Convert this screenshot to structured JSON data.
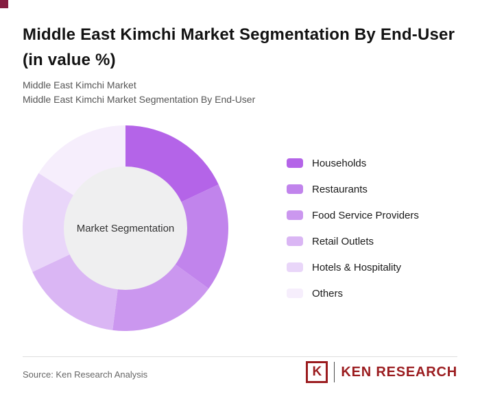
{
  "decoration": {
    "corner_square_color": "#851d41"
  },
  "header": {
    "title": "Middle East Kimchi Market Segmentation By End-User (in value %)",
    "subtitle1": "Middle East Kimchi Market",
    "subtitle2": "Middle East Kimchi Market Segmentation By End-User"
  },
  "chart_data": {
    "type": "pie",
    "variant": "donut",
    "title": "Middle East Kimchi Market Segmentation By End-User (in value %)",
    "center_label": "Market Segmentation",
    "categories": [
      "Households",
      "Restaurants",
      "Food Service Providers",
      "Retail Outlets",
      "Hotels & Hospitality",
      "Others"
    ],
    "values": [
      18,
      17,
      17,
      16,
      16,
      16
    ],
    "colors": [
      "#b464e8",
      "#c184ec",
      "#cb97ef",
      "#dab6f4",
      "#e9d6f9",
      "#f6eefc"
    ],
    "center_fill": "#efeff0",
    "inner_radius_ratio": 0.6,
    "start_angle_deg": 0,
    "direction": "clockwise",
    "legend_position": "right"
  },
  "legend": {
    "items": [
      {
        "label": "Households",
        "color": "#b464e8"
      },
      {
        "label": "Restaurants",
        "color": "#c184ec"
      },
      {
        "label": "Food Service Providers",
        "color": "#cb97ef"
      },
      {
        "label": "Retail Outlets",
        "color": "#dab6f4"
      },
      {
        "label": "Hotels & Hospitality",
        "color": "#e9d6f9"
      },
      {
        "label": "Others",
        "color": "#f6eefc"
      }
    ]
  },
  "footer": {
    "source": "Source: Ken Research Analysis",
    "logo_mark": "K",
    "logo_text": "KEN RESEARCH"
  }
}
